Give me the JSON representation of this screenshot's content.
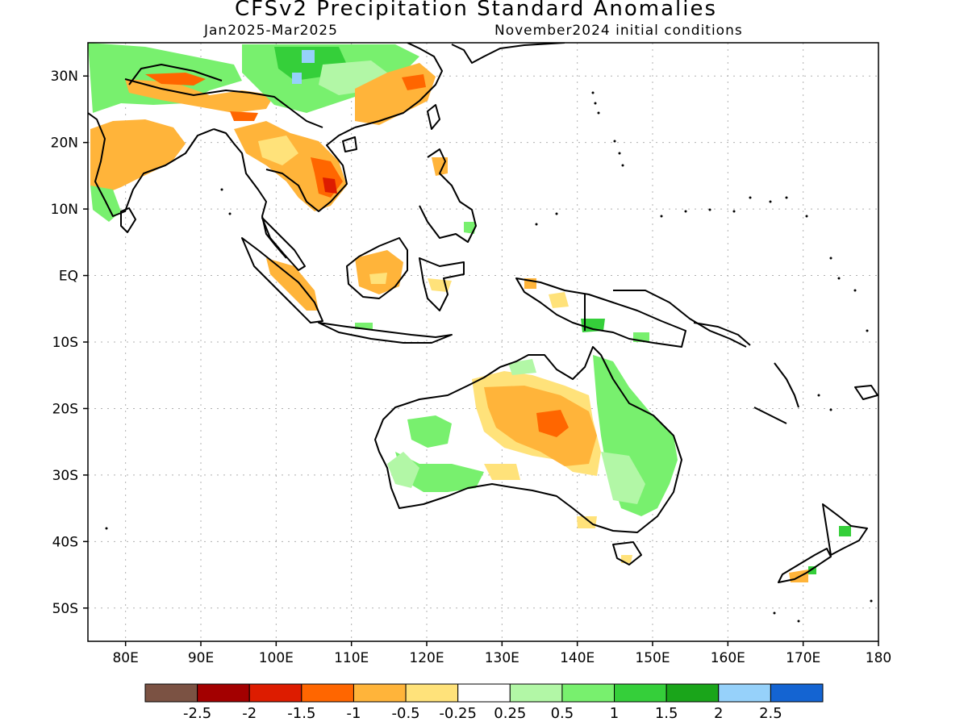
{
  "header": {
    "title": "CFSv2 Precipitation Standard Anomalies",
    "period": "Jan2025-Mar2025",
    "init": "November2024 initial conditions"
  },
  "axes": {
    "lat_labels": [
      {
        "text": "30N",
        "lat": 30
      },
      {
        "text": "20N",
        "lat": 20
      },
      {
        "text": "10N",
        "lat": 10
      },
      {
        "text": "EQ",
        "lat": 0
      },
      {
        "text": "10S",
        "lat": -10
      },
      {
        "text": "20S",
        "lat": -20
      },
      {
        "text": "30S",
        "lat": -30
      },
      {
        "text": "40S",
        "lat": -40
      },
      {
        "text": "50S",
        "lat": -50
      }
    ],
    "lon_labels": [
      {
        "text": "80E",
        "lon": 80
      },
      {
        "text": "90E",
        "lon": 90
      },
      {
        "text": "100E",
        "lon": 100
      },
      {
        "text": "110E",
        "lon": 110
      },
      {
        "text": "120E",
        "lon": 120
      },
      {
        "text": "130E",
        "lon": 130
      },
      {
        "text": "140E",
        "lon": 140
      },
      {
        "text": "150E",
        "lon": 150
      },
      {
        "text": "160E",
        "lon": 160
      },
      {
        "text": "170E",
        "lon": 170
      },
      {
        "text": "180",
        "lon": 180
      }
    ],
    "lon_range": [
      75,
      180
    ],
    "lat_range": [
      -55,
      35
    ],
    "grid": true
  },
  "colorbar": {
    "colors": [
      "#7b5243",
      "#a30000",
      "#dd1c00",
      "#ff6600",
      "#ffb43a",
      "#ffe27a",
      "#ffffff",
      "#b2f7a6",
      "#78f06e",
      "#35cf3a",
      "#1aa51a",
      "#96d1fa",
      "#1464d2"
    ],
    "labels": [
      "-2.5",
      "-2",
      "-1.5",
      "-1",
      "-0.5",
      "-0.25",
      "0.25",
      "0.5",
      "1",
      "1.5",
      "2",
      "2.5"
    ]
  }
}
